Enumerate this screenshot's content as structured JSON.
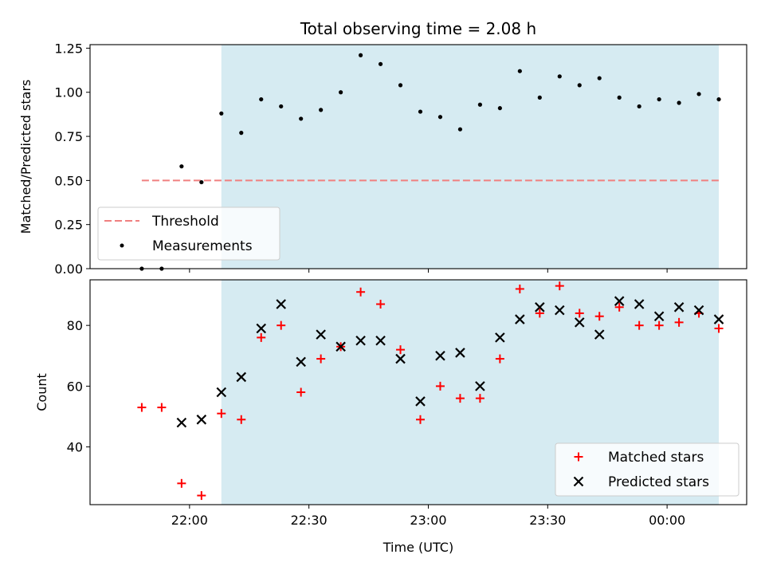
{
  "chart_data": [
    {
      "type": "scatter",
      "title": "Total observing time = 2.08 h",
      "xlabel": "",
      "ylabel": "Matched/Predicted stars",
      "ylim": [
        0,
        1.27
      ],
      "yticks": [
        "0.00",
        "0.25",
        "0.50",
        "0.75",
        "1.00",
        "1.25"
      ],
      "ytick_values": [
        0,
        0.25,
        0.5,
        0.75,
        1.0,
        1.25
      ],
      "xlim": [
        "21:35",
        "00:20"
      ],
      "grid": false,
      "legend_position": "lower-left",
      "shaded_region": {
        "from": "22:08",
        "to": "00:13",
        "color": "#add8e6"
      },
      "threshold": {
        "name": "Threshold",
        "value": 0.5,
        "from": "21:48",
        "to": "00:13",
        "color": "#f08080"
      },
      "series": [
        {
          "name": "Measurements",
          "color": "#000000",
          "marker": "dot",
          "x": [
            "21:48",
            "21:53",
            "21:58",
            "22:03",
            "22:08",
            "22:13",
            "22:18",
            "22:23",
            "22:28",
            "22:33",
            "22:38",
            "22:43",
            "22:48",
            "22:53",
            "22:58",
            "23:03",
            "23:08",
            "23:13",
            "23:18",
            "23:23",
            "23:28",
            "23:33",
            "23:38",
            "23:43",
            "23:48",
            "23:53",
            "23:58",
            "00:03",
            "00:08",
            "00:13"
          ],
          "y": [
            0.0,
            0.0,
            0.58,
            0.49,
            0.88,
            0.77,
            0.96,
            0.92,
            0.85,
            0.9,
            1.0,
            1.21,
            1.16,
            1.04,
            0.89,
            0.86,
            0.79,
            0.93,
            0.91,
            1.12,
            0.97,
            1.09,
            1.04,
            1.08,
            0.97,
            0.92,
            0.96,
            0.94,
            0.99,
            0.96
          ]
        }
      ]
    },
    {
      "type": "scatter",
      "title": "",
      "xlabel": "Time (UTC)",
      "ylabel": "Count",
      "ylim": [
        21,
        95
      ],
      "yticks": [
        "40",
        "60",
        "80"
      ],
      "ytick_values": [
        40,
        60,
        80
      ],
      "xlim": [
        "21:35",
        "00:20"
      ],
      "xticks": [
        "22:00",
        "22:30",
        "23:00",
        "23:30",
        "00:00"
      ],
      "xtick_values": [
        "22:00",
        "22:30",
        "23:00",
        "23:30",
        "00:00"
      ],
      "grid": false,
      "legend_position": "lower-right",
      "shaded_region": {
        "from": "22:08",
        "to": "00:13",
        "color": "#add8e6"
      },
      "series": [
        {
          "name": "Matched stars",
          "color": "#ff0000",
          "marker": "plus",
          "x": [
            "21:48",
            "21:53",
            "21:58",
            "22:03",
            "22:08",
            "22:13",
            "22:18",
            "22:23",
            "22:28",
            "22:33",
            "22:38",
            "22:43",
            "22:48",
            "22:53",
            "22:58",
            "23:03",
            "23:08",
            "23:13",
            "23:18",
            "23:23",
            "23:28",
            "23:33",
            "23:38",
            "23:43",
            "23:48",
            "23:53",
            "23:58",
            "00:03",
            "00:08",
            "00:13"
          ],
          "y": [
            53,
            53,
            28,
            24,
            51,
            49,
            76,
            80,
            58,
            69,
            73,
            91,
            87,
            72,
            49,
            60,
            56,
            56,
            69,
            92,
            84,
            93,
            84,
            83,
            86,
            80,
            80,
            81,
            84,
            79
          ]
        },
        {
          "name": "Predicted stars",
          "color": "#000000",
          "marker": "x",
          "x": [
            "21:58",
            "22:03",
            "22:08",
            "22:13",
            "22:18",
            "22:23",
            "22:28",
            "22:33",
            "22:38",
            "22:43",
            "22:48",
            "22:53",
            "22:58",
            "23:03",
            "23:08",
            "23:13",
            "23:18",
            "23:23",
            "23:28",
            "23:33",
            "23:38",
            "23:43",
            "23:48",
            "23:53",
            "23:58",
            "00:03",
            "00:08",
            "00:13"
          ],
          "y": [
            48,
            49,
            58,
            63,
            79,
            87,
            68,
            77,
            73,
            75,
            75,
            69,
            55,
            70,
            71,
            60,
            76,
            82,
            86,
            85,
            81,
            77,
            88,
            87,
            83,
            86,
            85,
            82
          ]
        }
      ]
    }
  ]
}
